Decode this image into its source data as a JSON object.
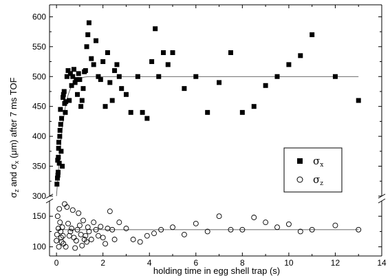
{
  "chart_data": {
    "type": "scatter",
    "xlabel": "holding time in egg shell trap (s)",
    "ylabel": {
      "parts": [
        "σ",
        "z",
        " and σ",
        "x",
        " (μm) after 7 ms TOF"
      ]
    },
    "xlim": [
      -0.3,
      14
    ],
    "xticks": [
      "0",
      "2",
      "4",
      "6",
      "8",
      "10",
      "12",
      "14"
    ],
    "y_axis_broken": true,
    "ylim_upper": [
      300,
      620
    ],
    "ylim_lower": [
      85,
      175
    ],
    "yticks_upper": [
      "300",
      "350",
      "400",
      "450",
      "500",
      "550",
      "600"
    ],
    "yticks_lower": [
      "100",
      "150"
    ],
    "legend_position": "right-middle",
    "series": [
      {
        "name": "σx",
        "name_parts": [
          "σ",
          "x"
        ],
        "marker": "filled-square",
        "x": [
          0.02,
          0.04,
          0.05,
          0.06,
          0.07,
          0.08,
          0.09,
          0.1,
          0.12,
          0.14,
          0.15,
          0.17,
          0.18,
          0.2,
          0.22,
          0.25,
          0.28,
          0.3,
          0.33,
          0.35,
          0.38,
          0.4,
          0.45,
          0.5,
          0.55,
          0.6,
          0.65,
          0.7,
          0.75,
          0.8,
          0.85,
          0.9,
          0.95,
          1.0,
          1.05,
          1.1,
          1.15,
          1.2,
          1.25,
          1.3,
          1.35,
          1.4,
          1.5,
          1.6,
          1.7,
          1.8,
          1.9,
          2.0,
          2.1,
          2.2,
          2.3,
          2.4,
          2.5,
          2.6,
          2.7,
          2.8,
          3.0,
          3.2,
          3.5,
          3.7,
          3.9,
          4.1,
          4.25,
          4.4,
          4.6,
          4.8,
          5.0,
          5.5,
          6.0,
          6.5,
          7.0,
          7.5,
          8.0,
          8.5,
          9.0,
          9.5,
          10.0,
          10.5,
          11.0,
          12.0,
          13.0
        ],
        "y": [
          320,
          330,
          360,
          335,
          340,
          365,
          380,
          390,
          355,
          400,
          410,
          445,
          420,
          375,
          430,
          350,
          465,
          470,
          475,
          455,
          440,
          458,
          500,
          510,
          460,
          505,
          485,
          500,
          512,
          490,
          495,
          470,
          505,
          495,
          450,
          460,
          480,
          508,
          510,
          550,
          570,
          590,
          530,
          520,
          560,
          500,
          495,
          525,
          450,
          540,
          490,
          460,
          510,
          520,
          500,
          480,
          470,
          440,
          500,
          440,
          430,
          525,
          580,
          500,
          540,
          520,
          540,
          480,
          500,
          440,
          490,
          540,
          440,
          450,
          485,
          500,
          520,
          535,
          570,
          500,
          460
        ]
      },
      {
        "name": "σz",
        "name_parts": [
          "σ",
          "z"
        ],
        "marker": "open-circle",
        "x": [
          0.0,
          0.02,
          0.05,
          0.08,
          0.1,
          0.12,
          0.15,
          0.18,
          0.2,
          0.22,
          0.25,
          0.28,
          0.3,
          0.35,
          0.4,
          0.45,
          0.5,
          0.55,
          0.6,
          0.65,
          0.7,
          0.75,
          0.8,
          0.85,
          0.9,
          0.95,
          1.0,
          1.05,
          1.1,
          1.15,
          1.2,
          1.25,
          1.3,
          1.35,
          1.4,
          1.5,
          1.6,
          1.7,
          1.8,
          1.9,
          2.0,
          2.1,
          2.2,
          2.3,
          2.4,
          2.5,
          2.7,
          3.0,
          3.3,
          3.6,
          3.9,
          4.2,
          4.5,
          5.0,
          5.5,
          6.0,
          6.5,
          7.0,
          7.5,
          8.0,
          8.5,
          9.0,
          9.5,
          10.0,
          10.5,
          11.0,
          12.0,
          13.0
        ],
        "y": [
          110,
          120,
          150,
          130,
          100,
          162,
          140,
          125,
          115,
          108,
          132,
          118,
          105,
          170,
          100,
          165,
          138,
          118,
          125,
          130,
          160,
          115,
          98,
          110,
          128,
          155,
          135,
          120,
          102,
          143,
          112,
          118,
          108,
          132,
          125,
          112,
          140,
          128,
          118,
          133,
          115,
          105,
          130,
          158,
          128,
          112,
          140,
          130,
          112,
          108,
          118,
          122,
          128,
          132,
          120,
          138,
          125,
          150,
          128,
          128,
          148,
          140,
          132,
          137,
          125,
          128,
          135,
          128
        ]
      },
      {
        "name": "",
        "type": "line",
        "note": "fit sigma_x",
        "x": [
          0,
          0.05,
          0.1,
          0.15,
          0.2,
          0.25,
          0.3,
          0.35,
          0.4,
          0.5,
          0.6,
          0.7,
          0.8,
          0.9,
          1.0,
          1.2,
          1.4,
          1.6,
          1.8,
          2.0,
          2.5,
          3.0,
          4.0,
          6.0,
          8.0,
          10.0,
          12.0,
          13.0
        ],
        "y": [
          300,
          325,
          352,
          375,
          396,
          414,
          429,
          442,
          453,
          469,
          480,
          487,
          492,
          495,
          497,
          499,
          500,
          500,
          500,
          500,
          500,
          500,
          500,
          500,
          500,
          500,
          500,
          500
        ]
      },
      {
        "name": "",
        "type": "line",
        "note": "fit sigma_z",
        "x": [
          0,
          13
        ],
        "y": [
          128,
          128
        ]
      }
    ]
  }
}
